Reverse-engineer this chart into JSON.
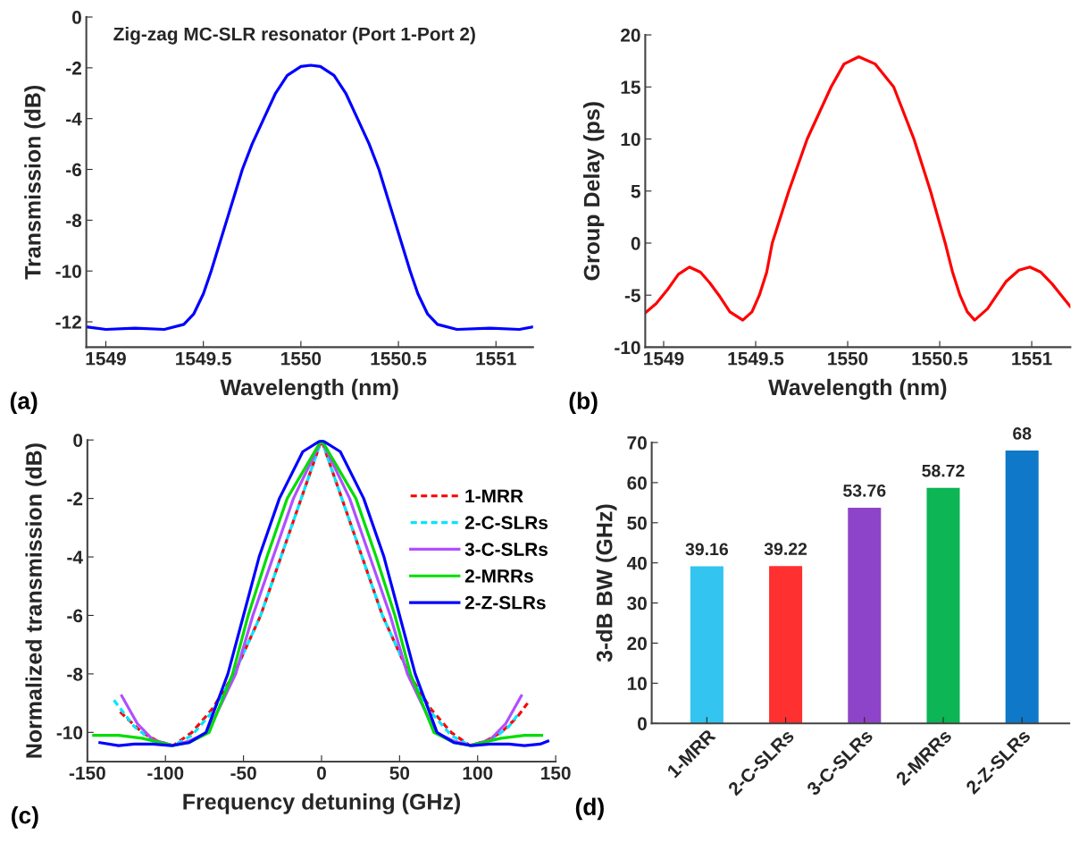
{
  "chart_data": [
    {
      "type": "line",
      "title": "Zig-zag MC-SLR resonator (Port 1-Port 2)",
      "xlabel": "Wavelength (nm)",
      "ylabel": "Transmission (dB)",
      "annotations": [
        "(a)"
      ],
      "xlim": [
        1548.9,
        1551.19
      ],
      "xticks": [
        1549,
        1549.5,
        1550,
        1550.5,
        1551
      ],
      "ylim": [
        -13,
        0
      ],
      "yticks": [
        0,
        -2,
        -4,
        -6,
        -8,
        -10,
        -12
      ],
      "grid": false,
      "legend": false,
      "series": [
        {
          "color": "#0000ff",
          "line_style": "solid",
          "x": [
            1548.9,
            1549.0,
            1549.15,
            1549.3,
            1549.4,
            1549.45,
            1549.5,
            1549.54,
            1549.58,
            1549.62,
            1549.66,
            1549.7,
            1549.75,
            1549.81,
            1549.87,
            1549.93,
            1550.0,
            1550.05,
            1550.1,
            1550.17,
            1550.23,
            1550.29,
            1550.35,
            1550.4,
            1550.44,
            1550.48,
            1550.52,
            1550.56,
            1550.6,
            1550.65,
            1550.7,
            1550.8,
            1550.97,
            1551.12,
            1551.19
          ],
          "values": [
            -12.2,
            -12.3,
            -12.25,
            -12.3,
            -12.1,
            -11.7,
            -10.9,
            -10.0,
            -9.0,
            -8.0,
            -7.0,
            -6.0,
            -5.0,
            -4.0,
            -3.0,
            -2.3,
            -1.95,
            -1.9,
            -1.95,
            -2.3,
            -3.0,
            -4.0,
            -5.0,
            -6.0,
            -7.0,
            -8.0,
            -9.0,
            -10.0,
            -10.9,
            -11.7,
            -12.1,
            -12.3,
            -12.25,
            -12.3,
            -12.2
          ]
        }
      ]
    },
    {
      "type": "line",
      "xlabel": "Wavelength (nm)",
      "ylabel": "Group Delay (ps)",
      "annotations": [
        "(b)"
      ],
      "xlim": [
        1548.9,
        1551.21
      ],
      "xticks": [
        1549,
        1549.5,
        1550,
        1550.5,
        1551
      ],
      "ylim": [
        -10,
        20
      ],
      "yticks": [
        -10,
        -5,
        0,
        5,
        10,
        15,
        20
      ],
      "grid": false,
      "legend": false,
      "series": [
        {
          "color": "#ff0000",
          "line_style": "solid",
          "x": [
            1548.9,
            1548.96,
            1549.02,
            1549.08,
            1549.14,
            1549.2,
            1549.25,
            1549.3,
            1549.36,
            1549.43,
            1549.48,
            1549.52,
            1549.56,
            1549.59,
            1549.68,
            1549.78,
            1549.91,
            1549.98,
            1550.06,
            1550.15,
            1550.25,
            1550.36,
            1550.45,
            1550.53,
            1550.57,
            1550.61,
            1550.65,
            1550.69,
            1550.76,
            1550.81,
            1550.86,
            1550.93,
            1550.99,
            1551.05,
            1551.11,
            1551.16,
            1551.21
          ],
          "values": [
            -6.7,
            -5.8,
            -4.5,
            -3.0,
            -2.3,
            -2.8,
            -3.8,
            -5.0,
            -6.6,
            -7.4,
            -6.6,
            -5.0,
            -2.8,
            0,
            5,
            10,
            15,
            17.2,
            17.9,
            17.2,
            15,
            10,
            5,
            0,
            -2.8,
            -5.0,
            -6.6,
            -7.4,
            -6.3,
            -5.0,
            -3.7,
            -2.6,
            -2.3,
            -2.8,
            -3.9,
            -5.0,
            -6.1
          ]
        }
      ]
    },
    {
      "type": "line",
      "xlabel": "Frequency detuning (GHz)",
      "ylabel": "Normalized transmission (dB)",
      "annotations": [
        "(c)"
      ],
      "xlim": [
        -150,
        150
      ],
      "xticks": [
        -150,
        -100,
        -50,
        0,
        50,
        100,
        150
      ],
      "ylim": [
        -11,
        0
      ],
      "yticks": [
        0,
        -2,
        -4,
        -6,
        -8,
        -10
      ],
      "grid": false,
      "legend": "top right",
      "series": [
        {
          "name": "1-MRR",
          "color": "#ff0000",
          "line_style": "dashed",
          "x": [
            -129,
            -115,
            -105,
            -95,
            -83,
            -70,
            -56,
            -39,
            -26,
            -13,
            0,
            13,
            26,
            39,
            56,
            70,
            83,
            95,
            105,
            115,
            125,
            132
          ],
          "values": [
            -9.3,
            -10.0,
            -10.3,
            -10.45,
            -10.0,
            -9.2,
            -8.0,
            -6.0,
            -4.0,
            -2.0,
            0,
            -2.0,
            -4.0,
            -6.0,
            -8.0,
            -9.2,
            -10.0,
            -10.45,
            -10.3,
            -10.0,
            -9.5,
            -9.0
          ]
        },
        {
          "name": "2-C-SLRs",
          "color": "#00e5ff",
          "line_style": "dashed",
          "x": [
            -133,
            -120,
            -108,
            -95,
            -83,
            -70,
            -56,
            -39,
            -26,
            -13,
            0,
            13,
            26,
            39,
            56,
            70,
            83,
            95,
            108,
            120,
            127
          ],
          "values": [
            -8.9,
            -9.8,
            -10.3,
            -10.45,
            -10.1,
            -9.3,
            -8.0,
            -6.0,
            -4.0,
            -2.0,
            0,
            -2.0,
            -4.0,
            -6.0,
            -8.0,
            -9.3,
            -10.1,
            -10.45,
            -10.3,
            -9.8,
            -9.3
          ]
        },
        {
          "name": "3-C-SLRs",
          "color": "#b04fff",
          "line_style": "solid",
          "x": [
            -128,
            -118,
            -108,
            -95,
            -85,
            -73,
            -55,
            -44,
            -31,
            -18,
            0,
            18,
            31,
            44,
            55,
            73,
            85,
            95,
            108,
            118,
            128
          ],
          "values": [
            -8.75,
            -9.7,
            -10.25,
            -10.45,
            -10.3,
            -10.0,
            -8.0,
            -6.0,
            -4.0,
            -2.0,
            0,
            -2.0,
            -4.0,
            -6.0,
            -8.0,
            -10.0,
            -10.3,
            -10.45,
            -10.25,
            -9.7,
            -8.75
          ]
        },
        {
          "name": "2-MRRs",
          "color": "#00dd00",
          "line_style": "solid",
          "x": [
            -146,
            -130,
            -115,
            -95,
            -85,
            -72,
            -57,
            -47,
            -35,
            -22,
            0,
            22,
            35,
            47,
            57,
            72,
            85,
            95,
            115,
            130,
            141
          ],
          "values": [
            -10.1,
            -10.1,
            -10.2,
            -10.45,
            -10.35,
            -10.0,
            -8.0,
            -6.0,
            -4.0,
            -2.0,
            0,
            -2.0,
            -4.0,
            -6.0,
            -8.0,
            -10.0,
            -10.35,
            -10.45,
            -10.2,
            -10.1,
            -10.1
          ]
        },
        {
          "name": "2-Z-SLRs",
          "color": "#0000ff",
          "line_style": "solid",
          "x": [
            -142,
            -130,
            -120,
            -108,
            -96,
            -85,
            -74,
            -60,
            -50,
            -40,
            -27,
            -12,
            0,
            12,
            27,
            40,
            50,
            60,
            74,
            85,
            96,
            108,
            120,
            130,
            140,
            145
          ],
          "values": [
            -10.35,
            -10.45,
            -10.4,
            -10.4,
            -10.45,
            -10.35,
            -10.0,
            -8.0,
            -6.0,
            -4.0,
            -2.0,
            -0.4,
            0,
            -0.4,
            -2.0,
            -4.0,
            -6.0,
            -8.0,
            -10.0,
            -10.35,
            -10.45,
            -10.4,
            -10.4,
            -10.45,
            -10.4,
            -10.3
          ]
        }
      ]
    },
    {
      "type": "bar",
      "ylabel": "3-dB BW (GHz)",
      "annotations": [
        "(d)"
      ],
      "categories": [
        "1-MRR",
        "2-C-SLRs",
        "3-C-SLRs",
        "2-MRRs",
        "2-Z-SLRs"
      ],
      "values": [
        39.16,
        39.22,
        53.76,
        58.72,
        68
      ],
      "colors": [
        "#33c4f0",
        "#ff3030",
        "#8e44c8",
        "#0db554",
        "#0f78c8"
      ],
      "ylim": [
        0,
        70
      ],
      "yticks": [
        0,
        10,
        20,
        30,
        40,
        50,
        60,
        70
      ],
      "data_labels": true,
      "grid": false,
      "legend": false
    }
  ]
}
